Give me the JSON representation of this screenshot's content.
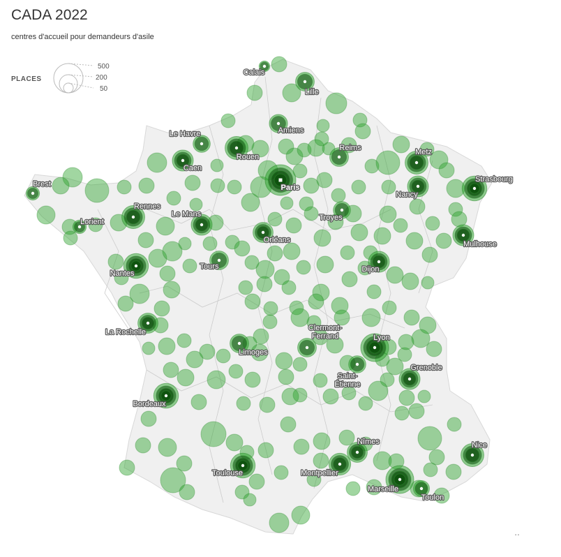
{
  "title": "CADA 2022",
  "subtitle": "centres d'accueil pour demandeurs d'asile",
  "legend": {
    "title": "PLACES",
    "items": [
      {
        "label": "500",
        "value": 500
      },
      {
        "label": "200",
        "value": 200
      },
      {
        "label": "50",
        "value": 50
      }
    ]
  },
  "colors": {
    "land": "#f0f0f0",
    "borders": "#d0d0d0",
    "bubble_fill": "#2ea32e",
    "bubble_stroke": "#2a8a2a",
    "label_text": "#ffffff",
    "label_halo": "#555555"
  },
  "map_data": {
    "type": "proportional-symbol-map",
    "region": "France",
    "cities": [
      {
        "name": "Calais",
        "places": 30
      },
      {
        "name": "Lille",
        "places": 150
      },
      {
        "name": "Amiens",
        "places": 140
      },
      {
        "name": "Le Havre",
        "places": 120
      },
      {
        "name": "Rouen",
        "places": 250
      },
      {
        "name": "Reims",
        "places": 150
      },
      {
        "name": "Metz",
        "places": 250
      },
      {
        "name": "Caen",
        "places": 200
      },
      {
        "name": "Paris",
        "places": 500
      },
      {
        "name": "Strasbourg",
        "places": 300
      },
      {
        "name": "Brest",
        "places": 60
      },
      {
        "name": "Nancy",
        "places": 200
      },
      {
        "name": "Rennes",
        "places": 250
      },
      {
        "name": "Le Mans",
        "places": 200
      },
      {
        "name": "Troyes",
        "places": 120
      },
      {
        "name": "Lorient",
        "places": 60
      },
      {
        "name": "Orléans",
        "places": 180
      },
      {
        "name": "Mulhouse",
        "places": 200
      },
      {
        "name": "Tours",
        "places": 150
      },
      {
        "name": "Nantes",
        "places": 300
      },
      {
        "name": "Dijon",
        "places": 200
      },
      {
        "name": "La Rochelle",
        "places": 180
      },
      {
        "name": "Clermont-Ferrand",
        "places": 150
      },
      {
        "name": "Limoges",
        "places": 150
      },
      {
        "name": "Lyon",
        "places": 400
      },
      {
        "name": "Saint-Étienne",
        "places": 120
      },
      {
        "name": "Grenoble",
        "places": 200
      },
      {
        "name": "Bordeaux",
        "places": 300
      },
      {
        "name": "Nîmes",
        "places": 180
      },
      {
        "name": "Nice",
        "places": 250
      },
      {
        "name": "Toulouse",
        "places": 300
      },
      {
        "name": "Montpellier",
        "places": 220
      },
      {
        "name": "Marseille",
        "places": 400
      },
      {
        "name": "Toulon",
        "places": 100
      }
    ]
  }
}
